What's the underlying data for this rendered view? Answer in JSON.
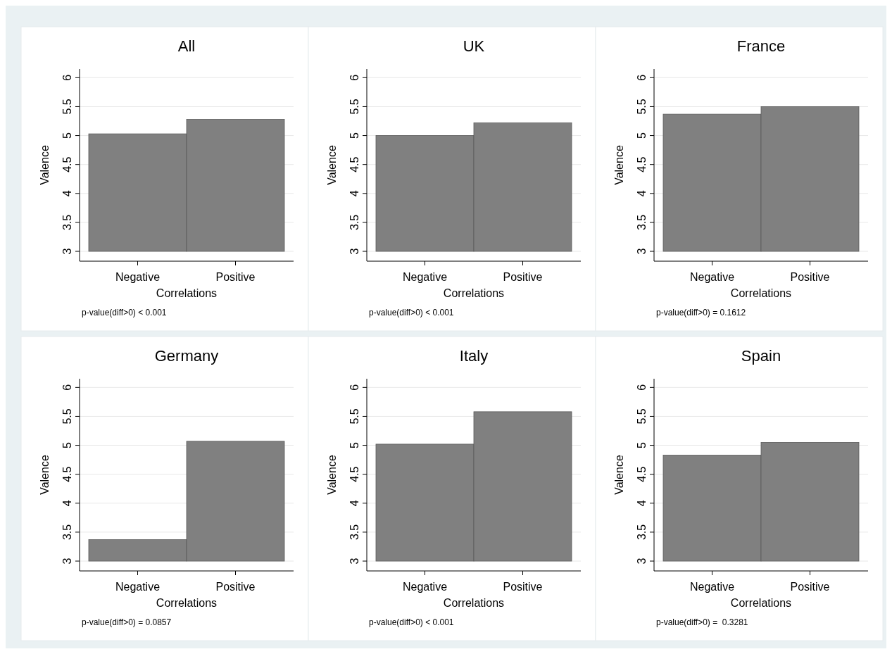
{
  "chart_data": [
    {
      "type": "bar",
      "title": "All",
      "xlabel": "Correlations",
      "ylabel": "Valence",
      "categories": [
        "Negative",
        "Positive"
      ],
      "values": [
        2.03,
        2.28
      ],
      "base": [
        3,
        3
      ],
      "color": "#808080",
      "ylim": [
        2.83,
        6.15
      ],
      "yticks": [
        3,
        3.5,
        4,
        4.5,
        5,
        5.5,
        6
      ],
      "grid": "y",
      "annotations": [
        "p-value(diff>0) < 0.001"
      ]
    },
    {
      "type": "bar",
      "title": "UK",
      "xlabel": "Correlations",
      "ylabel": "Valence",
      "categories": [
        "Negative",
        "Positive"
      ],
      "values": [
        2.0,
        2.22
      ],
      "base": [
        3,
        3
      ],
      "color": "#808080",
      "ylim": [
        2.83,
        6.15
      ],
      "yticks": [
        3,
        3.5,
        4,
        4.5,
        5,
        5.5,
        6
      ],
      "grid": "y",
      "annotations": [
        "p-value(diff>0) < 0.001"
      ]
    },
    {
      "type": "bar",
      "title": "France",
      "xlabel": "Correlations",
      "ylabel": "Valence",
      "categories": [
        "Negative",
        "Positive"
      ],
      "values": [
        2.37,
        2.5
      ],
      "base": [
        3,
        3
      ],
      "color": "#808080",
      "ylim": [
        2.83,
        6.15
      ],
      "yticks": [
        3,
        3.5,
        4,
        4.5,
        5,
        5.5,
        6
      ],
      "grid": "y",
      "annotations": [
        "p-value(diff>0) = 0.1612"
      ]
    },
    {
      "type": "bar",
      "title": "Germany",
      "xlabel": "Correlations",
      "ylabel": "Valence",
      "categories": [
        "Negative",
        "Positive"
      ],
      "values": [
        0.37,
        2.07
      ],
      "base": [
        3,
        3
      ],
      "color": "#808080",
      "ylim": [
        2.83,
        6.15
      ],
      "yticks": [
        3,
        3.5,
        4,
        4.5,
        5,
        5.5,
        6
      ],
      "grid": "y",
      "annotations": [
        "p-value(diff>0) = 0.0857"
      ]
    },
    {
      "type": "bar",
      "title": "Italy",
      "xlabel": "Correlations",
      "ylabel": "Valence",
      "categories": [
        "Negative",
        "Positive"
      ],
      "values": [
        2.02,
        2.58
      ],
      "base": [
        3,
        3
      ],
      "color": "#808080",
      "ylim": [
        2.83,
        6.15
      ],
      "yticks": [
        3,
        3.5,
        4,
        4.5,
        5,
        5.5,
        6
      ],
      "grid": "y",
      "annotations": [
        "p-value(diff>0) < 0.001"
      ]
    },
    {
      "type": "bar",
      "title": "Spain",
      "xlabel": "Correlations",
      "ylabel": "Valence",
      "categories": [
        "Negative",
        "Positive"
      ],
      "values": [
        1.83,
        2.05
      ],
      "base": [
        3,
        3
      ],
      "color": "#808080",
      "ylim": [
        2.83,
        6.15
      ],
      "yticks": [
        3,
        3.5,
        4,
        4.5,
        5,
        5.5,
        6
      ],
      "grid": "y",
      "annotations": [
        "p-value(diff>0) =  0.3281"
      ]
    }
  ]
}
